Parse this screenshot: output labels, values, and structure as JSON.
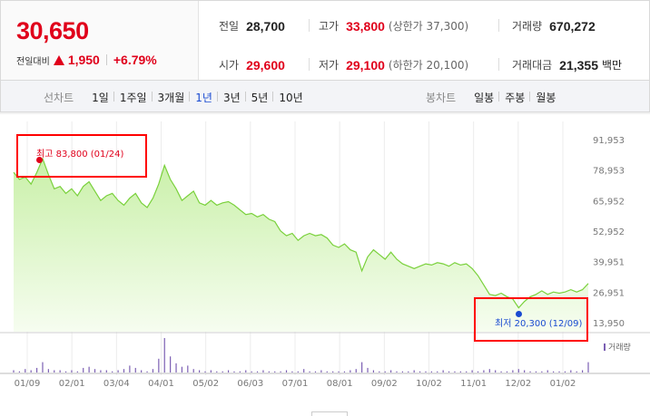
{
  "summary": {
    "price": "30,650",
    "change_label": "전일대비",
    "change_amount": "1,950",
    "change_pct": "+6.79%",
    "stats": {
      "prev_close": {
        "label": "전일",
        "value": "28,700"
      },
      "high": {
        "label": "고가",
        "value": "33,800",
        "sub": "(상한가 37,300)"
      },
      "volume": {
        "label": "거래량",
        "value": "670,272"
      },
      "open": {
        "label": "시가",
        "value": "29,600"
      },
      "low": {
        "label": "저가",
        "value": "29,100",
        "sub": "(하한가 20,100)"
      },
      "trade_value": {
        "label": "거래대금",
        "value": "21,355",
        "unit": "백만"
      }
    }
  },
  "tabs": {
    "line_label": "선차트",
    "line_periods": [
      "1일",
      "1주일",
      "3개월",
      "1년",
      "3년",
      "5년",
      "10년"
    ],
    "active_period": "1년",
    "candle_label": "봉차트",
    "candle_periods": [
      "일봉",
      "주봉",
      "월봉"
    ]
  },
  "chart_data": {
    "type": "area",
    "title": "",
    "xlabel": "",
    "ylabel": "",
    "x_ticks": [
      "01/09",
      "02/01",
      "03/04",
      "04/01",
      "05/02",
      "06/03",
      "07/01",
      "08/01",
      "09/02",
      "10/02",
      "11/01",
      "12/02",
      "01/02"
    ],
    "y_ticks": [
      91953,
      78953,
      65952,
      52952,
      39951,
      26951,
      13950
    ],
    "y_tick_labels": [
      "91,953",
      "78,953",
      "65,952",
      "52,952",
      "39,951",
      "26,951",
      "13,950"
    ],
    "ylim": [
      13950,
      91953
    ],
    "grid": "vertical",
    "series": [
      {
        "values": [
          78000,
          75000,
          76000,
          73000,
          78000,
          83800,
          77000,
          71000,
          72000,
          69000,
          71000,
          68000,
          72000,
          74000,
          70000,
          66000,
          68000,
          69000,
          66000,
          64000,
          67000,
          69000,
          65000,
          63000,
          67000,
          73000,
          81000,
          75000,
          71000,
          66000,
          68000,
          70000,
          65000,
          64000,
          66000,
          64000,
          65000,
          65500,
          64000,
          62000,
          60000,
          60500,
          59000,
          60000,
          58000,
          57000,
          53000,
          51000,
          52000,
          49000,
          51000,
          52000,
          51000,
          51500,
          50000,
          47000,
          46000,
          47500,
          45000,
          44000,
          36000,
          42000,
          45000,
          43000,
          41000,
          44000,
          41000,
          39000,
          38000,
          37000,
          38000,
          39000,
          38500,
          39500,
          39000,
          38000,
          39500,
          38500,
          39000,
          37000,
          34000,
          30000,
          26000,
          25500,
          26500,
          25000,
          24000,
          20300,
          23000,
          25000,
          26000,
          27500,
          26000,
          27000,
          26500,
          27000,
          28000,
          27000,
          28000,
          30650
        ]
      }
    ],
    "volume": [
      2,
      1,
      3,
      2,
      4,
      9,
      3,
      2,
      2,
      1,
      2,
      1,
      4,
      5,
      3,
      2,
      2,
      1,
      2,
      3,
      6,
      4,
      2,
      1,
      3,
      12,
      30,
      14,
      8,
      5,
      6,
      3,
      2,
      1,
      2,
      1,
      1,
      2,
      1,
      1,
      2,
      1,
      1,
      2,
      1,
      1,
      1,
      2,
      1,
      1,
      3,
      1,
      1,
      2,
      1,
      1,
      1,
      1,
      2,
      3,
      9,
      4,
      2,
      1,
      1,
      2,
      1,
      1,
      1,
      2,
      1,
      1,
      1,
      1,
      2,
      1,
      1,
      1,
      1,
      2,
      1,
      2,
      3,
      2,
      1,
      1,
      2,
      3,
      2,
      1,
      1,
      1,
      2,
      1,
      1,
      1,
      2,
      1,
      2,
      9
    ],
    "volume_legend": "거래량",
    "annotations": {
      "high": {
        "label": "최고",
        "value": "83,800",
        "date": "(01/24)",
        "index": 5
      },
      "low": {
        "label": "최저",
        "value": "20,300",
        "date": "(12/09)",
        "index": 87
      }
    },
    "colors": {
      "line": "#7ad13c",
      "fill_top": "#c9f0a8",
      "fill_bottom": "#f6fdf0",
      "volume": "#7b5fb3",
      "marker_box": "#ff0000",
      "high": "#e0001b",
      "low": "#1a4bd1"
    }
  }
}
